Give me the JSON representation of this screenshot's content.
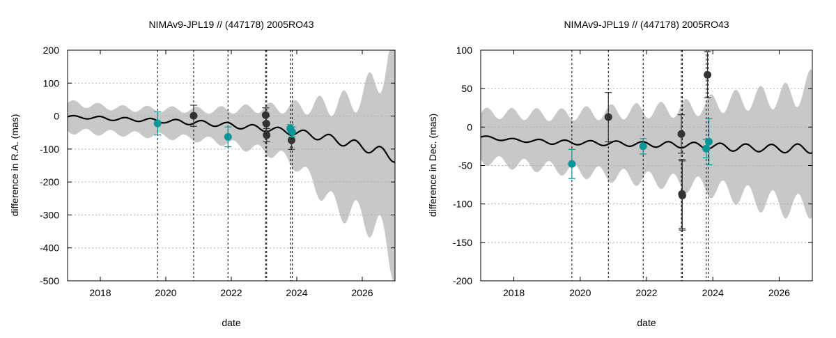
{
  "chart_data": [
    {
      "type": "line",
      "title": "NIMAv9-JPL19 // (447178) 2005RO43",
      "xlabel": "date",
      "ylabel": "difference in R.A. (mas)",
      "xlim": [
        2017.0,
        2027.0
      ],
      "ylim": [
        -500,
        200
      ],
      "xticks": [
        2018,
        2020,
        2022,
        2024,
        2026
      ],
      "xtick_labels": [
        "2018",
        "2020",
        "2022",
        "2024",
        "2026"
      ],
      "yticks": [
        -500,
        -400,
        -300,
        -200,
        -100,
        0,
        100,
        200
      ],
      "ytick_labels": [
        "-500",
        "-400",
        "-300",
        "-200",
        "-100",
        "0",
        "100",
        "200"
      ],
      "grid": true,
      "colors": {
        "model": "#000000",
        "band": "#c8c8c8",
        "obs_dark": "#333333",
        "obs_teal": "#0a9696",
        "vlines": "#000000"
      },
      "model": {
        "x": [
          2017.0,
          2017.5,
          2018.0,
          2018.5,
          2019.0,
          2019.5,
          2020.0,
          2020.5,
          2021.0,
          2021.5,
          2022.0,
          2022.5,
          2023.0,
          2023.5,
          2024.0,
          2024.5,
          2025.0,
          2025.5,
          2026.0,
          2026.5,
          2027.0
        ],
        "y": [
          -2,
          -4,
          -6,
          -9,
          -10,
          -13,
          -15,
          -18,
          -20,
          -24,
          -28,
          -33,
          -38,
          -44,
          -50,
          -58,
          -68,
          -80,
          -92,
          -106,
          -125
        ],
        "osc_amp": [
          4,
          4,
          5,
          5,
          5,
          6,
          6,
          7,
          7,
          7,
          8,
          8,
          9,
          9,
          10,
          11,
          12,
          13,
          14,
          15,
          16
        ]
      },
      "band": {
        "x": [
          2017.0,
          2017.5,
          2018.0,
          2018.5,
          2019.0,
          2019.5,
          2020.0,
          2020.5,
          2021.0,
          2021.5,
          2022.0,
          2022.5,
          2023.0,
          2023.5,
          2024.0,
          2024.5,
          2025.0,
          2025.5,
          2026.0,
          2026.5,
          2027.0
        ],
        "upper": [
          40,
          35,
          30,
          25,
          22,
          22,
          20,
          20,
          18,
          18,
          20,
          22,
          25,
          25,
          28,
          30,
          35,
          40,
          60,
          120,
          190
        ],
        "lower": [
          -45,
          -48,
          -50,
          -52,
          -55,
          -58,
          -62,
          -65,
          -70,
          -75,
          -85,
          -95,
          -105,
          -120,
          -150,
          -200,
          -260,
          -290,
          -300,
          -350,
          -440
        ]
      },
      "vlines": [
        2019.75,
        2020.85,
        2021.9,
        2023.05,
        2023.08,
        2023.8,
        2023.86
      ],
      "observations": [
        {
          "x": 2019.75,
          "y": -22,
          "err": 35,
          "group": "teal"
        },
        {
          "x": 2020.85,
          "y": 1,
          "err": 32,
          "group": "dark"
        },
        {
          "x": 2021.9,
          "y": -63,
          "err": 30,
          "group": "teal"
        },
        {
          "x": 2023.05,
          "y": 3,
          "err": 22,
          "group": "dark"
        },
        {
          "x": 2023.07,
          "y": -23,
          "err": 22,
          "group": "dark"
        },
        {
          "x": 2023.08,
          "y": -58,
          "err": 20,
          "group": "dark"
        },
        {
          "x": 2023.8,
          "y": -38,
          "err": 12,
          "group": "teal"
        },
        {
          "x": 2023.84,
          "y": -73,
          "err": 28,
          "group": "dark"
        },
        {
          "x": 2023.86,
          "y": -48,
          "err": 15,
          "group": "teal"
        }
      ]
    },
    {
      "type": "line",
      "title": "NIMAv9-JPL19 // (447178) 2005RO43",
      "xlabel": "date",
      "ylabel": "difference in Dec. (mas)",
      "xlim": [
        2017.0,
        2027.0
      ],
      "ylim": [
        -200,
        100
      ],
      "xticks": [
        2018,
        2020,
        2022,
        2024,
        2026
      ],
      "xtick_labels": [
        "2018",
        "2020",
        "2022",
        "2024",
        "2026"
      ],
      "yticks": [
        -200,
        -150,
        -100,
        -50,
        0,
        50,
        100
      ],
      "ytick_labels": [
        "-200",
        "-150",
        "-100",
        "-50",
        "0",
        "50",
        "100"
      ],
      "grid": true,
      "colors": {
        "model": "#000000",
        "band": "#c8c8c8",
        "obs_dark": "#333333",
        "obs_teal": "#0a9696",
        "vlines": "#000000"
      },
      "model": {
        "x": [
          2017.0,
          2017.5,
          2018.0,
          2018.5,
          2019.0,
          2019.5,
          2020.0,
          2020.5,
          2021.0,
          2021.5,
          2022.0,
          2022.5,
          2023.0,
          2023.5,
          2024.0,
          2024.5,
          2025.0,
          2025.5,
          2026.0,
          2026.5,
          2027.0
        ],
        "y": [
          -13,
          -15,
          -17,
          -18,
          -19,
          -20,
          -20,
          -21,
          -21,
          -22,
          -22,
          -23,
          -23,
          -24,
          -25,
          -26,
          -27,
          -27,
          -28,
          -28,
          -28
        ],
        "osc_amp": [
          2,
          2,
          2,
          2,
          3,
          3,
          3,
          3,
          3,
          3,
          3,
          4,
          4,
          4,
          4,
          5,
          5,
          5,
          5,
          6,
          6
        ]
      },
      "band": {
        "x": [
          2017.0,
          2017.5,
          2018.0,
          2018.5,
          2019.0,
          2019.5,
          2020.0,
          2020.5,
          2021.0,
          2021.5,
          2022.0,
          2022.5,
          2023.0,
          2023.5,
          2024.0,
          2024.5,
          2025.0,
          2025.5,
          2026.0,
          2026.5,
          2027.0
        ],
        "upper": [
          18,
          18,
          17,
          17,
          16,
          16,
          18,
          18,
          20,
          20,
          22,
          22,
          24,
          26,
          30,
          33,
          36,
          38,
          40,
          42,
          58
        ],
        "lower": [
          -42,
          -45,
          -48,
          -50,
          -52,
          -55,
          -58,
          -60,
          -63,
          -65,
          -68,
          -70,
          -73,
          -76,
          -80,
          -85,
          -90,
          -96,
          -100,
          -105,
          -100
        ]
      },
      "vlines": [
        2019.75,
        2020.85,
        2021.9,
        2023.05,
        2023.08,
        2023.8,
        2023.86
      ],
      "observations": [
        {
          "x": 2019.75,
          "y": -48,
          "err": 19,
          "group": "teal"
        },
        {
          "x": 2020.85,
          "y": 13,
          "err": 32,
          "group": "dark"
        },
        {
          "x": 2021.9,
          "y": -25,
          "err": 10,
          "group": "teal"
        },
        {
          "x": 2023.05,
          "y": -9,
          "err": 25,
          "group": "dark"
        },
        {
          "x": 2023.07,
          "y": -87,
          "err": 45,
          "group": "dark"
        },
        {
          "x": 2023.08,
          "y": -89,
          "err": 45,
          "group": "dark"
        },
        {
          "x": 2023.8,
          "y": -28,
          "err": 12,
          "group": "teal"
        },
        {
          "x": 2023.84,
          "y": 68,
          "err": 30,
          "group": "dark"
        },
        {
          "x": 2023.88,
          "y": -19,
          "err": 30,
          "group": "teal"
        }
      ]
    }
  ]
}
